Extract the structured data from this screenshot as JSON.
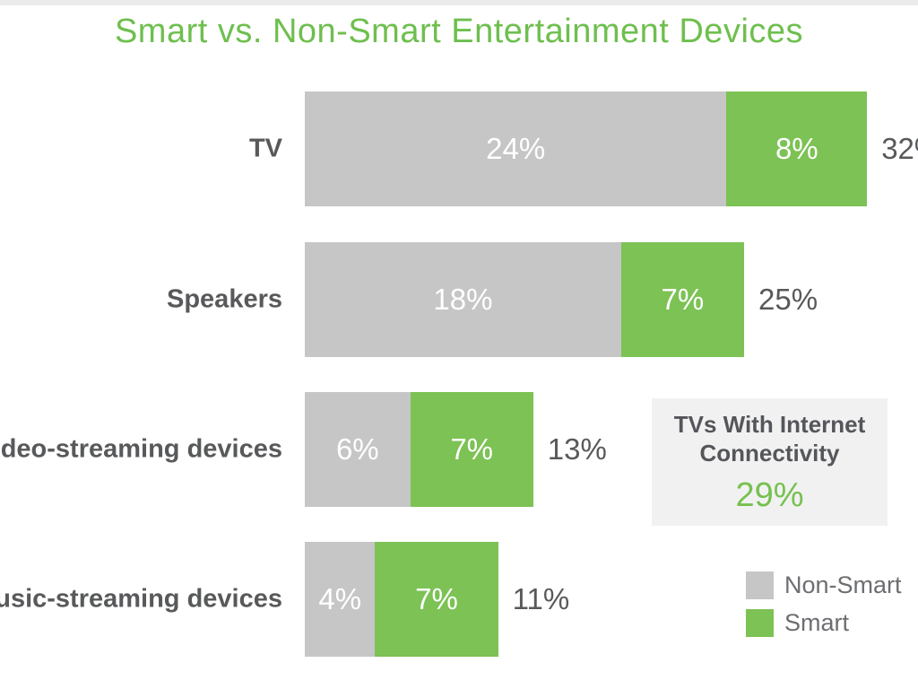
{
  "title": {
    "text": "Smart vs. Non-Smart Entertainment Devices",
    "color": "#6ebf4e"
  },
  "chart_data": {
    "type": "bar",
    "orientation": "horizontal",
    "stacked": true,
    "title": "Smart vs. Non-Smart Entertainment Devices",
    "categories": [
      "TV",
      "Speakers",
      "Video-streaming devices",
      "Music-streaming devices"
    ],
    "series": [
      {
        "name": "Non-Smart",
        "color": "#c6c6c7",
        "values": [
          24,
          18,
          6,
          4
        ]
      },
      {
        "name": "Smart",
        "color": "#7cc254",
        "values": [
          8,
          7,
          7,
          7
        ]
      }
    ],
    "totals": [
      32,
      25,
      13,
      11
    ],
    "value_suffix": "%",
    "bar_label_color": "#ffffff",
    "total_label_color": "#58595b",
    "category_label_color": "#58595b",
    "xlim": [
      0,
      32
    ],
    "grid": false,
    "legend_position": "bottom-right"
  },
  "callout": {
    "title_line1": "TVs With Internet",
    "title_line2": "Connectivity",
    "title_color": "#55565a",
    "value": "29%",
    "value_color": "#76c14e",
    "background": "#f1f1f2"
  },
  "legend": {
    "items": [
      {
        "label": "Non-Smart",
        "color": "#c6c6c7"
      },
      {
        "label": "Smart",
        "color": "#7cc254"
      }
    ],
    "label_color": "#6d6e71"
  }
}
